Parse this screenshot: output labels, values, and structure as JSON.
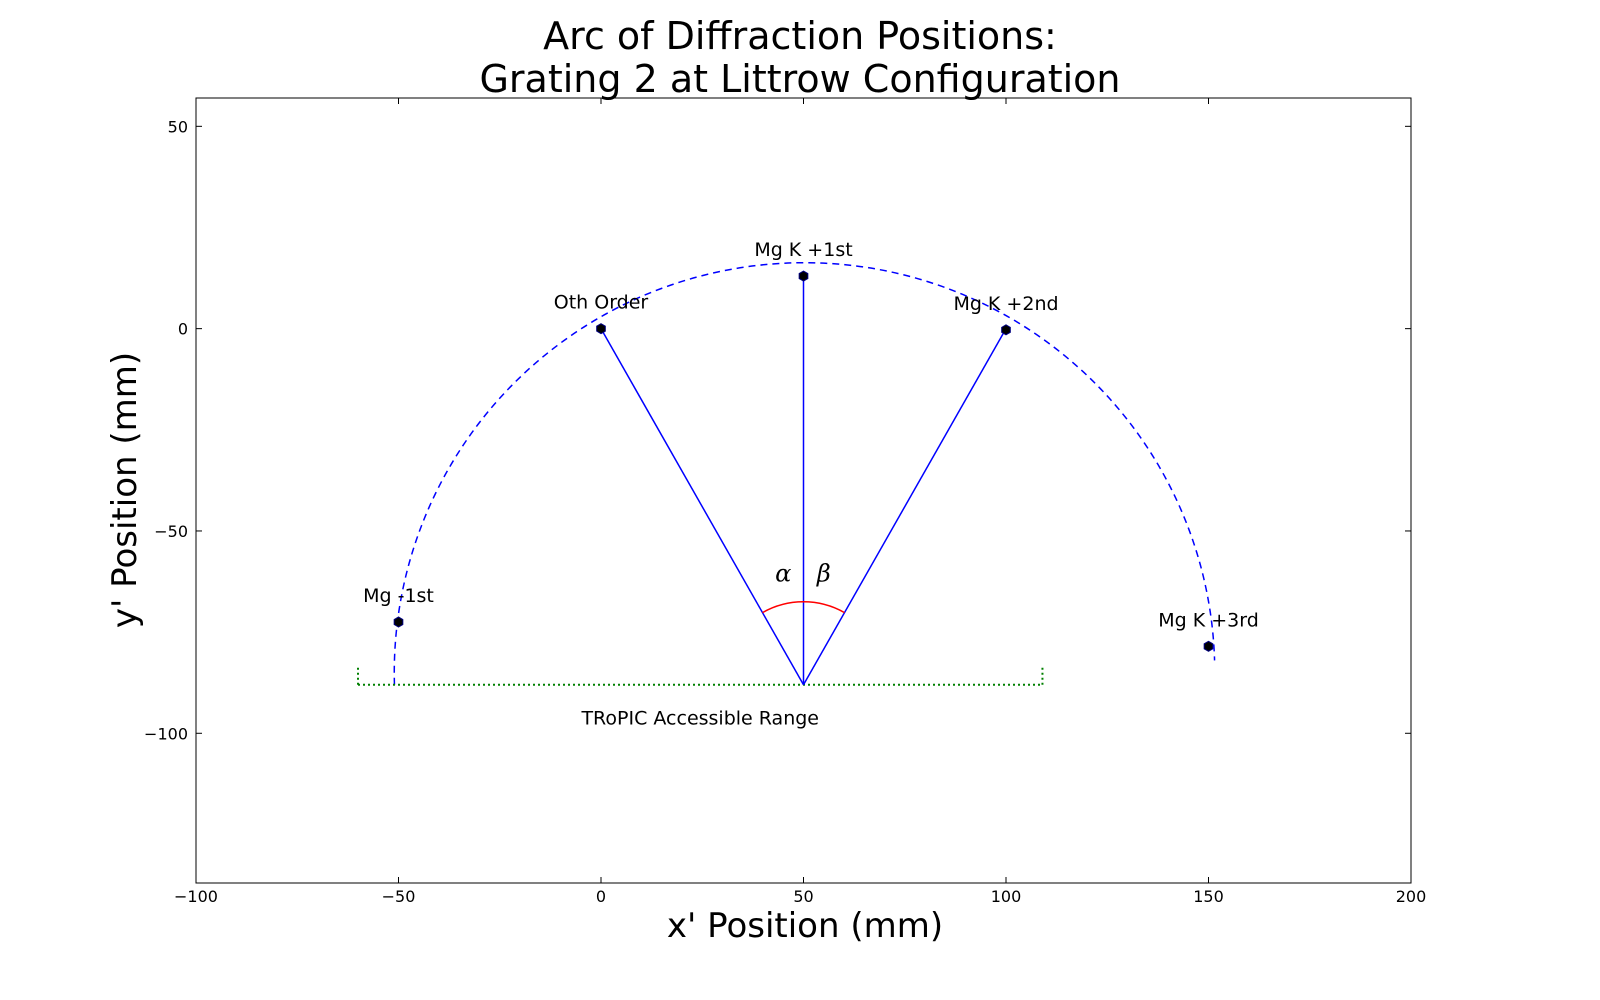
{
  "chart_data": {
    "type": "scatter",
    "title_lines": [
      "Arc of Diffraction Positions:",
      "Grating 2 at Littrow Configuration"
    ],
    "xlabel": "x' Position (mm)",
    "ylabel": "y' Position (mm)",
    "xlim": [
      -100,
      200
    ],
    "ylim": [
      -137,
      57
    ],
    "xticks": [
      -100,
      -50,
      0,
      50,
      100,
      150,
      200
    ],
    "yticks": [
      50,
      0,
      -50,
      -100
    ],
    "tick_labels_x": [
      "−100",
      "−50",
      "0",
      "50",
      "100",
      "150",
      "200"
    ],
    "tick_labels_y": [
      "50",
      "0",
      "−50",
      "−100"
    ],
    "grid": false,
    "arc": {
      "center": [
        50,
        -88
      ],
      "radius": 101,
      "style": "dashed",
      "color": "#0000ff",
      "from_point": [
        -51,
        -88
      ],
      "to_point": [
        151.5,
        -82
      ]
    },
    "points": [
      {
        "label": "Mg -1st",
        "x": -50,
        "y": -72.5
      },
      {
        "label": "Oth Order",
        "x": 0,
        "y": 0
      },
      {
        "label": "Mg K +1st",
        "x": 50,
        "y": 13
      },
      {
        "label": "Mg K +2nd",
        "x": 100,
        "y": -0.3
      },
      {
        "label": "Mg K +3rd",
        "x": 150,
        "y": -78.5
      }
    ],
    "rays": {
      "origin": [
        50,
        -88
      ],
      "targets": [
        [
          0,
          0
        ],
        [
          50,
          13
        ],
        [
          100,
          0
        ]
      ],
      "color": "#0000ff"
    },
    "angle_arc": {
      "center": [
        50,
        -88
      ],
      "radius": 20.5,
      "color": "#ff0000",
      "from_point": [
        0,
        0
      ],
      "to_point": [
        100,
        0
      ],
      "labels": [
        {
          "text": "α",
          "x": 45,
          "y": -62.5
        },
        {
          "text": "β",
          "x": 55,
          "y": -62.5
        }
      ]
    },
    "accessible_range": {
      "label": "TRoPIC Accessible Range",
      "x_start": -60,
      "x_end": 109,
      "y": -88,
      "tick_top": -83.5,
      "color": "#008000",
      "style": "dotted"
    },
    "colors": {
      "marker": "#000000",
      "ray": "#0000ff",
      "angle": "#ff0000",
      "range": "#008000"
    }
  }
}
